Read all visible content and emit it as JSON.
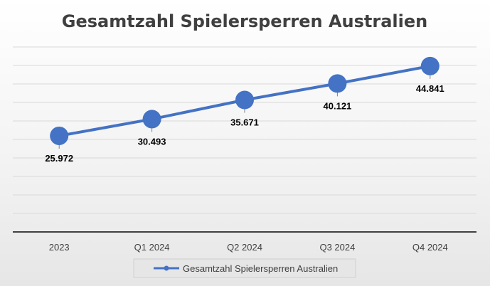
{
  "chart_data": {
    "type": "line",
    "title": "Gesamtzahl Spielersperren Australien",
    "categories": [
      "2023",
      "Q1 2024",
      "Q2 2024",
      "Q3 2024",
      "Q4 2024"
    ],
    "series": [
      {
        "name": "Gesamtzahl Spielersperren Australien",
        "values": [
          25972,
          30493,
          35671,
          40121,
          44841
        ],
        "labels": [
          "25.972",
          "30.493",
          "35.671",
          "40.121",
          "44.841"
        ],
        "color": "#4472c4"
      }
    ],
    "ylim": [
      0,
      50000
    ],
    "grid": true,
    "legend": "bottom",
    "xlabel": "",
    "ylabel": ""
  }
}
